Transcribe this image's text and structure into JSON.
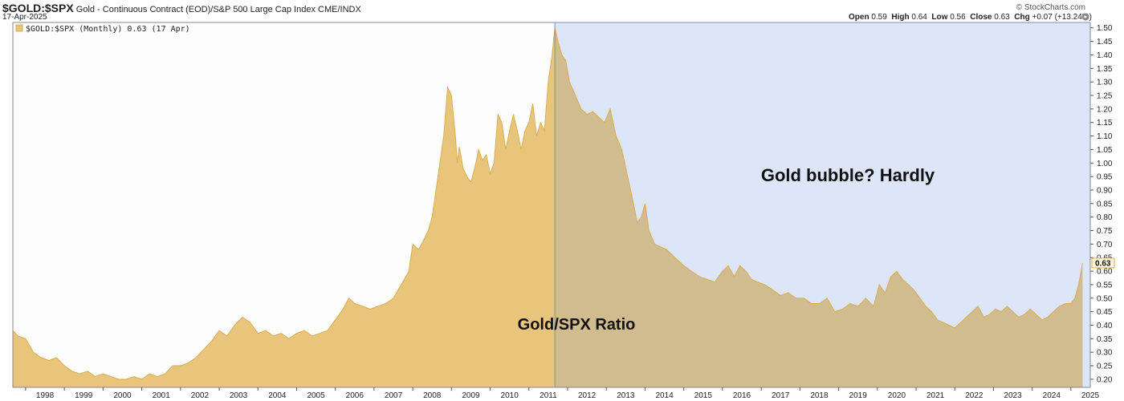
{
  "header": {
    "symbol": "$GOLD:$SPX",
    "description": "Gold - Continuous Contract (EOD)/S&P 500 Large Cap Index",
    "exchange": "CME/INDX",
    "date": "17-Apr-2025",
    "source": "© StockCharts.com",
    "ohlc": {
      "open_label": "Open",
      "open": "0.59",
      "high_label": "High",
      "high": "0.64",
      "low_label": "Low",
      "low": "0.56",
      "close_label": "Close",
      "close": "0.63",
      "chg_label": "Chg",
      "chg": "+0.07 (+13.24%)"
    }
  },
  "chart_data": {
    "type": "area",
    "legend": "$GOLD:$SPX (Monthly) 0.63 (17 Apr)",
    "last_value_label": "0.63",
    "annotations": [
      "Gold/SPX Ratio",
      "Gold bubble? Hardly"
    ],
    "ylim": [
      0.17,
      1.52
    ],
    "yticks": [
      "0.20",
      "0.25",
      "0.30",
      "0.35",
      "0.40",
      "0.45",
      "0.50",
      "0.55",
      "0.60",
      "0.65",
      "0.70",
      "0.75",
      "0.80",
      "0.85",
      "0.90",
      "0.95",
      "1.00",
      "1.05",
      "1.10",
      "1.15",
      "1.20",
      "1.25",
      "1.30",
      "1.35",
      "1.40",
      "1.45",
      "1.50"
    ],
    "xticks": [
      "1998",
      "1999",
      "2000",
      "2001",
      "2002",
      "2003",
      "2004",
      "2005",
      "2006",
      "2007",
      "2008",
      "2009",
      "2010",
      "2011",
      "2012",
      "2013",
      "2014",
      "2015",
      "2016",
      "2017",
      "2018",
      "2019",
      "2020",
      "2021",
      "2022",
      "2023",
      "2024",
      "2025"
    ],
    "highlight_from": 2011.67,
    "series": [
      {
        "x": [
          1997.67,
          1997.8,
          1998.0,
          1998.2,
          1998.4,
          1998.6,
          1998.8,
          1999.0,
          1999.2,
          1999.4,
          1999.6,
          1999.8,
          2000.0,
          2000.2,
          2000.4,
          2000.6,
          2000.8,
          2001.0,
          2001.2,
          2001.4,
          2001.6,
          2001.8,
          2002.0,
          2002.2,
          2002.4,
          2002.6,
          2002.8,
          2003.0,
          2003.2,
          2003.4,
          2003.6,
          2003.8,
          2004.0,
          2004.2,
          2004.4,
          2004.6,
          2004.8,
          2005.0,
          2005.2,
          2005.4,
          2005.6,
          2005.8,
          2006.0,
          2006.2,
          2006.35,
          2006.5,
          2006.7,
          2006.9,
          2007.1,
          2007.3,
          2007.5,
          2007.7,
          2007.9,
          2008.0,
          2008.15,
          2008.3,
          2008.4,
          2008.5,
          2008.6,
          2008.7,
          2008.8,
          2008.9,
          2009.0,
          2009.1,
          2009.15,
          2009.2,
          2009.3,
          2009.4,
          2009.5,
          2009.6,
          2009.7,
          2009.8,
          2009.9,
          2010.0,
          2010.1,
          2010.2,
          2010.3,
          2010.4,
          2010.5,
          2010.6,
          2010.7,
          2010.8,
          2010.9,
          2011.0,
          2011.1,
          2011.2,
          2011.3,
          2011.4,
          2011.5,
          2011.6,
          2011.67,
          2011.75,
          2011.85,
          2011.95,
          2012.05,
          2012.2,
          2012.35,
          2012.5,
          2012.65,
          2012.8,
          2012.95,
          2013.1,
          2013.25,
          2013.4,
          2013.55,
          2013.7,
          2013.8,
          2013.9,
          2014.0,
          2014.1,
          2014.25,
          2014.4,
          2014.55,
          2014.7,
          2014.85,
          2015.0,
          2015.2,
          2015.4,
          2015.6,
          2015.8,
          2016.0,
          2016.15,
          2016.3,
          2016.45,
          2016.6,
          2016.75,
          2016.9,
          2017.1,
          2017.3,
          2017.5,
          2017.7,
          2017.9,
          2018.1,
          2018.3,
          2018.5,
          2018.7,
          2018.9,
          2019.1,
          2019.3,
          2019.5,
          2019.7,
          2019.9,
          2020.05,
          2020.2,
          2020.35,
          2020.5,
          2020.65,
          2020.8,
          2020.95,
          2021.1,
          2021.25,
          2021.4,
          2021.55,
          2021.7,
          2021.85,
          2022.0,
          2022.15,
          2022.3,
          2022.45,
          2022.6,
          2022.75,
          2022.9,
          2023.05,
          2023.2,
          2023.35,
          2023.5,
          2023.65,
          2023.8,
          2023.95,
          2024.1,
          2024.25,
          2024.4,
          2024.55,
          2024.7,
          2024.85,
          2025.0,
          2025.1,
          2025.2,
          2025.3
        ],
        "y": [
          0.38,
          0.36,
          0.35,
          0.3,
          0.28,
          0.27,
          0.28,
          0.25,
          0.23,
          0.22,
          0.23,
          0.21,
          0.22,
          0.21,
          0.2,
          0.2,
          0.21,
          0.2,
          0.22,
          0.21,
          0.22,
          0.25,
          0.25,
          0.26,
          0.28,
          0.31,
          0.34,
          0.38,
          0.36,
          0.4,
          0.43,
          0.41,
          0.37,
          0.38,
          0.36,
          0.37,
          0.35,
          0.37,
          0.38,
          0.36,
          0.37,
          0.38,
          0.42,
          0.46,
          0.5,
          0.48,
          0.47,
          0.46,
          0.47,
          0.48,
          0.5,
          0.55,
          0.6,
          0.7,
          0.68,
          0.72,
          0.75,
          0.8,
          0.9,
          1.0,
          1.1,
          1.28,
          1.25,
          1.1,
          1.0,
          1.06,
          0.98,
          0.95,
          0.93,
          0.98,
          1.05,
          1.01,
          1.03,
          0.96,
          1.0,
          1.18,
          1.15,
          1.05,
          1.12,
          1.18,
          1.12,
          1.05,
          1.12,
          1.15,
          1.22,
          1.1,
          1.15,
          1.12,
          1.3,
          1.4,
          1.5,
          1.45,
          1.4,
          1.38,
          1.3,
          1.25,
          1.2,
          1.18,
          1.19,
          1.17,
          1.15,
          1.2,
          1.1,
          1.05,
          0.95,
          0.85,
          0.78,
          0.8,
          0.85,
          0.75,
          0.7,
          0.69,
          0.68,
          0.66,
          0.64,
          0.62,
          0.6,
          0.58,
          0.57,
          0.56,
          0.6,
          0.62,
          0.58,
          0.62,
          0.6,
          0.57,
          0.56,
          0.55,
          0.53,
          0.51,
          0.52,
          0.5,
          0.5,
          0.48,
          0.48,
          0.5,
          0.45,
          0.46,
          0.48,
          0.47,
          0.5,
          0.47,
          0.55,
          0.52,
          0.58,
          0.6,
          0.57,
          0.55,
          0.53,
          0.5,
          0.47,
          0.45,
          0.42,
          0.41,
          0.4,
          0.39,
          0.41,
          0.43,
          0.45,
          0.47,
          0.43,
          0.44,
          0.46,
          0.45,
          0.47,
          0.45,
          0.43,
          0.44,
          0.46,
          0.44,
          0.42,
          0.43,
          0.45,
          0.47,
          0.48,
          0.48,
          0.5,
          0.55,
          0.63
        ]
      }
    ]
  },
  "colors": {
    "area_fill": "#E8C57A",
    "area_stroke": "#D9AE55",
    "area_fill_highlight": "#D0BC8E",
    "highlight_bg": "#DDE6F8",
    "axis": "#555555",
    "text": "#222222"
  }
}
